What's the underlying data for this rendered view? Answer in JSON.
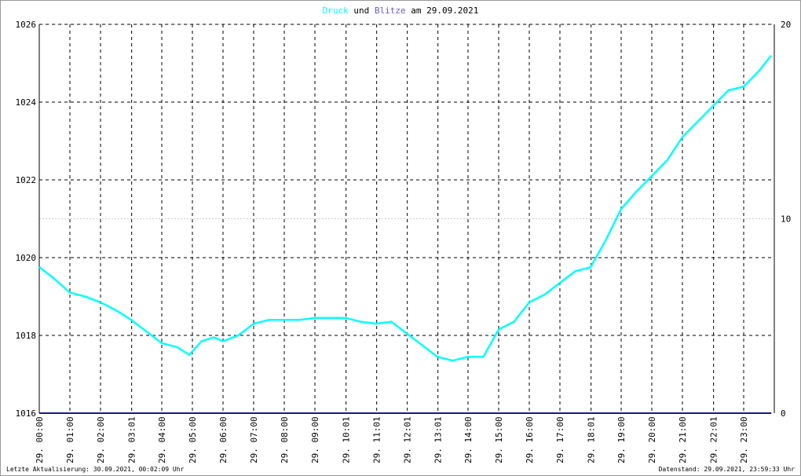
{
  "chart_data": {
    "type": "line",
    "title_join": "und",
    "title_date": "am 29.09.2021",
    "footer_left": "Letzte Aktualisierung: 30.09.2021, 00:02:09 Uhr",
    "footer_right": "Datenstand: 29.09.2021, 23:59:33 Uhr",
    "xlim": [
      0,
      24
    ],
    "xticks": [
      {
        "value": 0,
        "label": "29. 00:00"
      },
      {
        "value": 1,
        "label": "29. 01:00"
      },
      {
        "value": 2,
        "label": "29. 02:00"
      },
      {
        "value": 3.017,
        "label": "29. 03:01"
      },
      {
        "value": 4,
        "label": "29. 04:00"
      },
      {
        "value": 5,
        "label": "29. 05:00"
      },
      {
        "value": 6,
        "label": "29. 06:00"
      },
      {
        "value": 7,
        "label": "29. 07:00"
      },
      {
        "value": 8,
        "label": "29. 08:00"
      },
      {
        "value": 9,
        "label": "29. 09:00"
      },
      {
        "value": 10.017,
        "label": "29. 10:01"
      },
      {
        "value": 11.017,
        "label": "29. 11:01"
      },
      {
        "value": 12.017,
        "label": "29. 12:01"
      },
      {
        "value": 13.017,
        "label": "29. 13:01"
      },
      {
        "value": 14,
        "label": "29. 14:00"
      },
      {
        "value": 15,
        "label": "29. 15:00"
      },
      {
        "value": 16,
        "label": "29. 16:00"
      },
      {
        "value": 17,
        "label": "29. 17:00"
      },
      {
        "value": 18.017,
        "label": "29. 18:01"
      },
      {
        "value": 19,
        "label": "29. 19:00"
      },
      {
        "value": 20,
        "label": "29. 20:00"
      },
      {
        "value": 21,
        "label": "29. 21:00"
      },
      {
        "value": 22.017,
        "label": "29. 22:01"
      },
      {
        "value": 23,
        "label": "29. 23:00"
      }
    ],
    "ylim": [
      1016,
      1026
    ],
    "yticks": [
      1016,
      1018,
      1020,
      1022,
      1024,
      1026
    ],
    "y2lim": [
      0,
      20
    ],
    "y2ticks": [
      0,
      10,
      20
    ],
    "series": [
      {
        "name": "Druck",
        "color": "#00ffff",
        "x": [
          0,
          0.5,
          1,
          1.5,
          2,
          2.5,
          3,
          3.5,
          4,
          4.5,
          4.9,
          5.3,
          5.7,
          6,
          6.5,
          7,
          7.5,
          8,
          8.5,
          9,
          9.5,
          10,
          10.5,
          11,
          11.5,
          12,
          12.5,
          13,
          13.5,
          14,
          14.5,
          15,
          15.5,
          16,
          16.5,
          17,
          17.5,
          18,
          18.5,
          19,
          19.5,
          20,
          20.5,
          21,
          21.5,
          22,
          22.5,
          23,
          23.5,
          23.9
        ],
        "values": [
          1019.76,
          1019.45,
          1019.1,
          1019.0,
          1018.85,
          1018.65,
          1018.4,
          1018.1,
          1017.8,
          1017.7,
          1017.5,
          1017.85,
          1017.95,
          1017.85,
          1018.0,
          1018.3,
          1018.4,
          1018.4,
          1018.4,
          1018.45,
          1018.45,
          1018.45,
          1018.35,
          1018.3,
          1018.35,
          1018.05,
          1017.75,
          1017.45,
          1017.35,
          1017.45,
          1017.45,
          1018.15,
          1018.35,
          1018.85,
          1019.05,
          1019.35,
          1019.65,
          1019.75,
          1020.45,
          1021.25,
          1021.7,
          1022.1,
          1022.5,
          1023.1,
          1023.5,
          1023.9,
          1024.3,
          1024.4,
          1024.8,
          1025.2
        ]
      },
      {
        "name": "Blitze",
        "color": "#1a1a80",
        "axis": "y2",
        "x": [
          0,
          23.9
        ],
        "values": [
          0,
          0
        ]
      }
    ]
  }
}
